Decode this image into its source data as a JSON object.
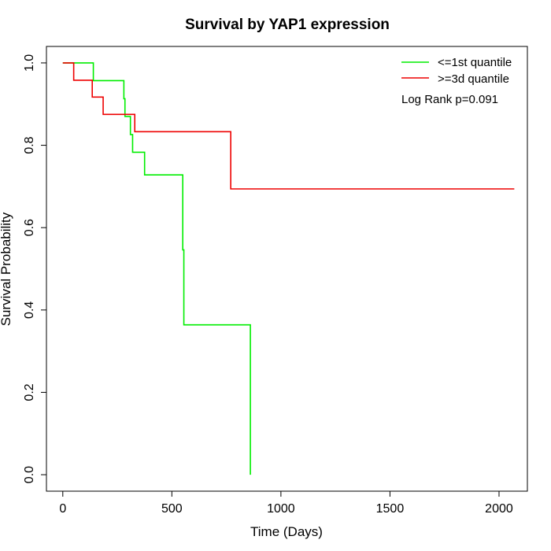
{
  "chart_data": {
    "type": "line",
    "title": "Survival by YAP1 expression",
    "xlabel": "Time (Days)",
    "ylabel": "Survival Probability",
    "xlim": [
      -75,
      2130
    ],
    "ylim": [
      -0.04,
      1.04
    ],
    "xticks": [
      0,
      500,
      1000,
      1500,
      2000
    ],
    "yticks": [
      0.0,
      0.2,
      0.4,
      0.6,
      0.8,
      1.0
    ],
    "xtick_labels": [
      "0",
      "500",
      "1000",
      "1500",
      "2000"
    ],
    "ytick_labels": [
      "0.0",
      "0.2",
      "0.4",
      "0.6",
      "0.8",
      "1.0"
    ],
    "grid": false,
    "legend_position": "top-right",
    "annotation": "Log Rank p=0.091",
    "series": [
      {
        "name": "<=1st quantile",
        "color": "#00ee00",
        "step": true,
        "x": [
          0,
          140,
          280,
          285,
          290,
          310,
          320,
          375,
          550,
          555,
          560,
          860,
          860
        ],
        "y": [
          1.0,
          0.957,
          0.913,
          0.87,
          0.87,
          0.826,
          0.783,
          0.728,
          0.546,
          0.364,
          0.364,
          0.364,
          0.0
        ]
      },
      {
        "name": ">=3d quantile",
        "color": "#ee0000",
        "step": true,
        "x": [
          0,
          50,
          135,
          185,
          330,
          770,
          2070
        ],
        "y": [
          1.0,
          0.958,
          0.917,
          0.875,
          0.833,
          0.694,
          0.694
        ]
      }
    ]
  }
}
